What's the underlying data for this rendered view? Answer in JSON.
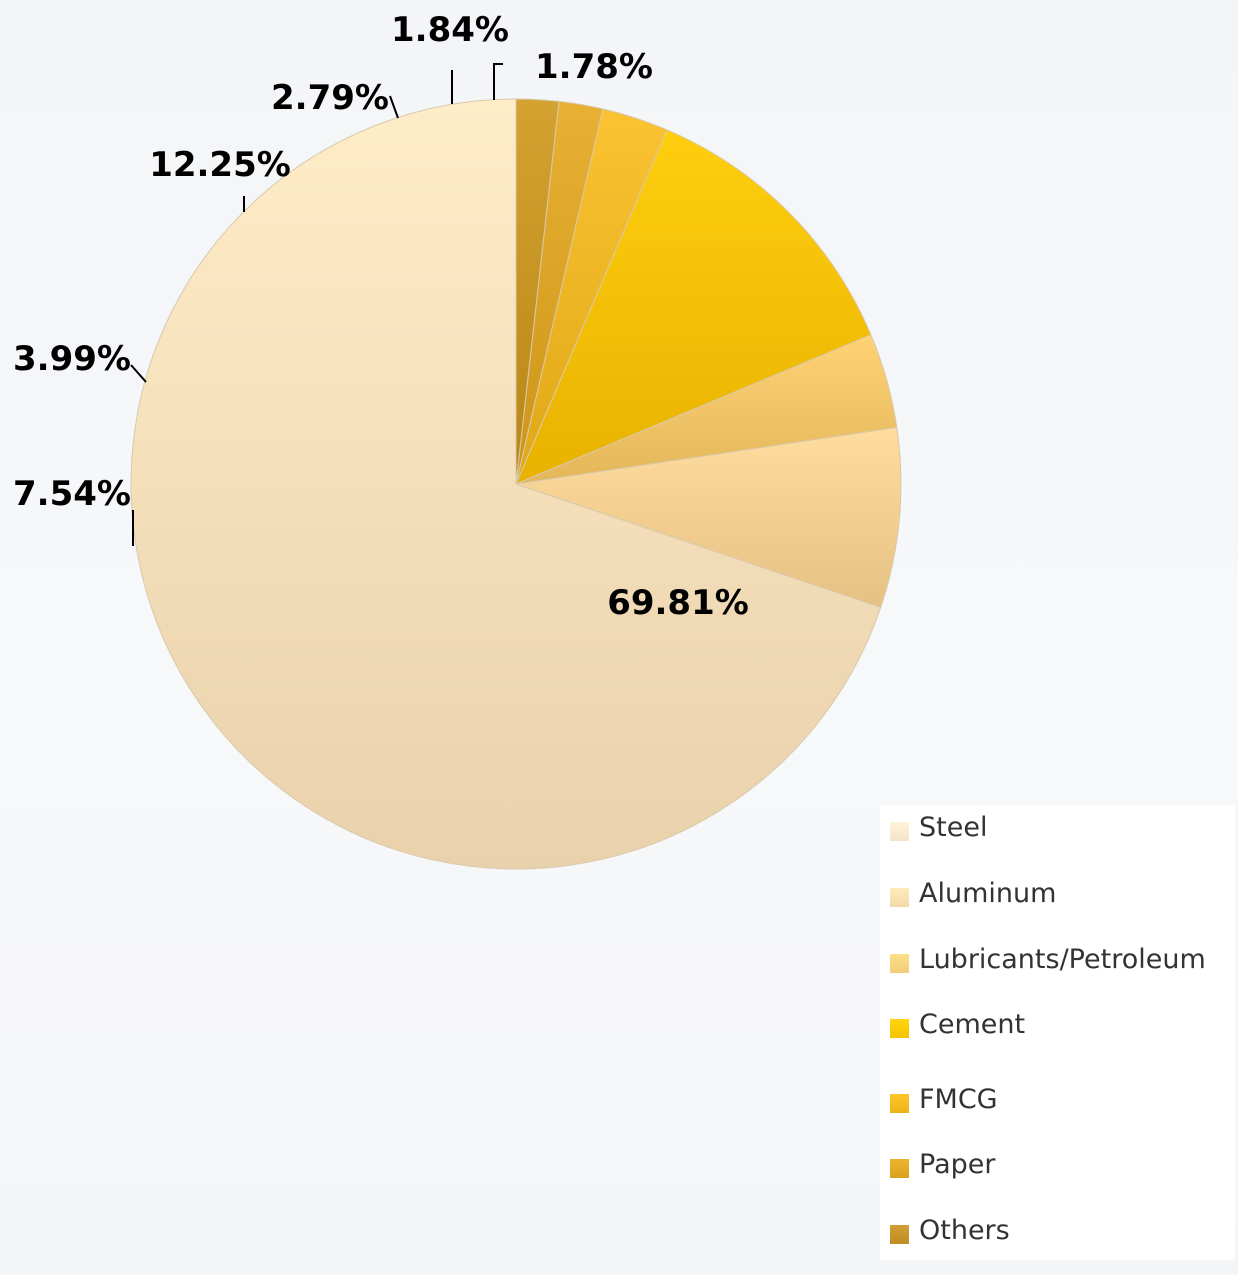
{
  "chart_data": {
    "type": "pie",
    "categories": [
      "Steel",
      "Aluminum",
      "Lubricants/Petroleum",
      "Cement",
      "FMCG",
      "Paper",
      "Others"
    ],
    "values": [
      69.81,
      7.54,
      3.99,
      12.25,
      2.79,
      1.84,
      1.78
    ],
    "data_labels": [
      "69.81%",
      "7.54%",
      "3.99%",
      "12.25%",
      "2.79%",
      "1.84%",
      "1.78%"
    ],
    "colors": [
      "#f7dfba",
      "#f3cf91",
      "#f1c468",
      "#f6c000",
      "#edb524",
      "#dba325",
      "#c69423"
    ],
    "start_angle": "12 o'clock",
    "direction": "counter-clockwise",
    "legend_position": "bottom-right"
  },
  "legend": {
    "items": [
      {
        "label": "Steel",
        "color": "#f5e3c8"
      },
      {
        "label": "Aluminum",
        "color": "#f3d9a8"
      },
      {
        "label": "Lubricants/Petroleum",
        "color": "#f2cd78"
      },
      {
        "label": "Cement",
        "color": "#f4c300"
      },
      {
        "label": "FMCG",
        "color": "#eeb317"
      },
      {
        "label": "Paper",
        "color": "#d9a11c"
      },
      {
        "label": "Others",
        "color": "#bf8d22"
      }
    ]
  }
}
